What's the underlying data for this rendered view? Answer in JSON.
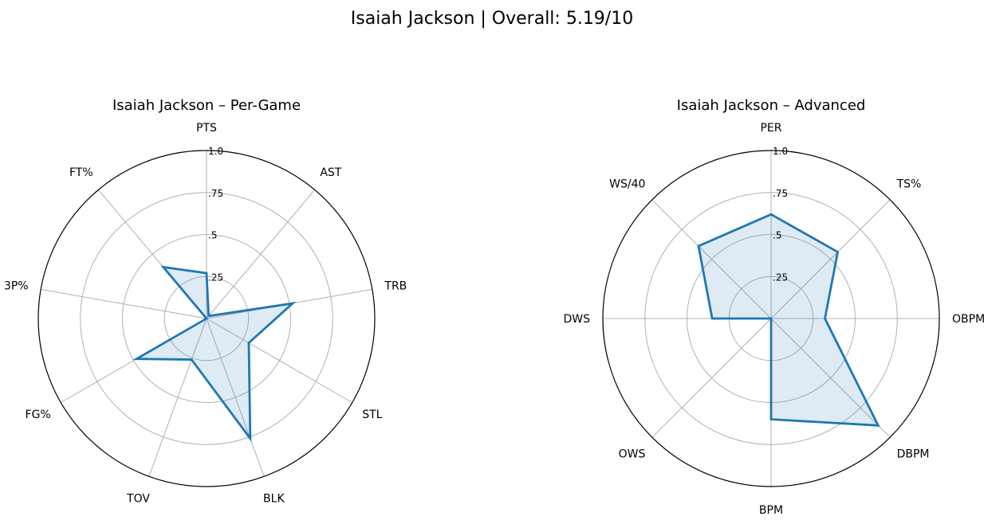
{
  "figure": {
    "suptitle": "Isaiah Jackson | Overall: 5.19/10"
  },
  "chart_data": [
    {
      "type": "radar",
      "title": "Isaiah Jackson – Per-Game",
      "categories": [
        "PTS",
        "AST",
        "TRB",
        "STL",
        "BLK",
        "TOV",
        "FG%",
        "3P%",
        "FT%"
      ],
      "values": [
        0.27,
        0.02,
        0.52,
        0.29,
        0.76,
        0.26,
        0.48,
        0.0,
        0.4
      ],
      "rlim": [
        0,
        1
      ],
      "rticks": [
        0.25,
        0.5,
        0.75,
        1.0
      ],
      "rtick_labels": [
        ".25",
        ".5",
        ".75",
        "1.0"
      ],
      "line_color": "#1f77b4",
      "fill_color": "#1f77b4",
      "grid": true
    },
    {
      "type": "radar",
      "title": "Isaiah Jackson – Advanced",
      "categories": [
        "PER",
        "TS%",
        "OBPM",
        "DBPM",
        "BPM",
        "OWS",
        "DWS",
        "WS/40"
      ],
      "values": [
        0.62,
        0.56,
        0.32,
        0.9,
        0.6,
        0.0,
        0.35,
        0.61
      ],
      "rlim": [
        0,
        1
      ],
      "rticks": [
        0.25,
        0.5,
        0.75,
        1.0
      ],
      "rtick_labels": [
        ".25",
        ".5",
        ".75",
        "1.0"
      ],
      "line_color": "#1f77b4",
      "fill_color": "#1f77b4",
      "grid": true
    }
  ]
}
